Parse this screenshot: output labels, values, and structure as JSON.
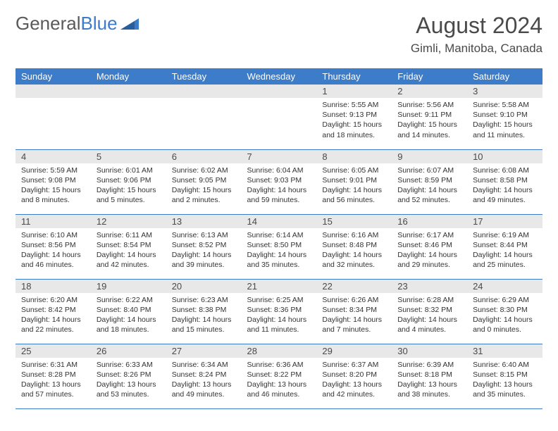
{
  "logo": {
    "text1": "General",
    "text2": "Blue"
  },
  "title": "August 2024",
  "location": "Gimli, Manitoba, Canada",
  "colors": {
    "header_bg": "#3d7cc9",
    "daynum_bg": "#e8e8e8",
    "text": "#333333",
    "rule": "#3d7cc9"
  },
  "weekdays": [
    "Sunday",
    "Monday",
    "Tuesday",
    "Wednesday",
    "Thursday",
    "Friday",
    "Saturday"
  ],
  "weeks": [
    [
      {
        "n": "",
        "sunrise": "",
        "sunset": "",
        "daylight": ""
      },
      {
        "n": "",
        "sunrise": "",
        "sunset": "",
        "daylight": ""
      },
      {
        "n": "",
        "sunrise": "",
        "sunset": "",
        "daylight": ""
      },
      {
        "n": "",
        "sunrise": "",
        "sunset": "",
        "daylight": ""
      },
      {
        "n": "1",
        "sunrise": "Sunrise: 5:55 AM",
        "sunset": "Sunset: 9:13 PM",
        "daylight": "Daylight: 15 hours and 18 minutes."
      },
      {
        "n": "2",
        "sunrise": "Sunrise: 5:56 AM",
        "sunset": "Sunset: 9:11 PM",
        "daylight": "Daylight: 15 hours and 14 minutes."
      },
      {
        "n": "3",
        "sunrise": "Sunrise: 5:58 AM",
        "sunset": "Sunset: 9:10 PM",
        "daylight": "Daylight: 15 hours and 11 minutes."
      }
    ],
    [
      {
        "n": "4",
        "sunrise": "Sunrise: 5:59 AM",
        "sunset": "Sunset: 9:08 PM",
        "daylight": "Daylight: 15 hours and 8 minutes."
      },
      {
        "n": "5",
        "sunrise": "Sunrise: 6:01 AM",
        "sunset": "Sunset: 9:06 PM",
        "daylight": "Daylight: 15 hours and 5 minutes."
      },
      {
        "n": "6",
        "sunrise": "Sunrise: 6:02 AM",
        "sunset": "Sunset: 9:05 PM",
        "daylight": "Daylight: 15 hours and 2 minutes."
      },
      {
        "n": "7",
        "sunrise": "Sunrise: 6:04 AM",
        "sunset": "Sunset: 9:03 PM",
        "daylight": "Daylight: 14 hours and 59 minutes."
      },
      {
        "n": "8",
        "sunrise": "Sunrise: 6:05 AM",
        "sunset": "Sunset: 9:01 PM",
        "daylight": "Daylight: 14 hours and 56 minutes."
      },
      {
        "n": "9",
        "sunrise": "Sunrise: 6:07 AM",
        "sunset": "Sunset: 8:59 PM",
        "daylight": "Daylight: 14 hours and 52 minutes."
      },
      {
        "n": "10",
        "sunrise": "Sunrise: 6:08 AM",
        "sunset": "Sunset: 8:58 PM",
        "daylight": "Daylight: 14 hours and 49 minutes."
      }
    ],
    [
      {
        "n": "11",
        "sunrise": "Sunrise: 6:10 AM",
        "sunset": "Sunset: 8:56 PM",
        "daylight": "Daylight: 14 hours and 46 minutes."
      },
      {
        "n": "12",
        "sunrise": "Sunrise: 6:11 AM",
        "sunset": "Sunset: 8:54 PM",
        "daylight": "Daylight: 14 hours and 42 minutes."
      },
      {
        "n": "13",
        "sunrise": "Sunrise: 6:13 AM",
        "sunset": "Sunset: 8:52 PM",
        "daylight": "Daylight: 14 hours and 39 minutes."
      },
      {
        "n": "14",
        "sunrise": "Sunrise: 6:14 AM",
        "sunset": "Sunset: 8:50 PM",
        "daylight": "Daylight: 14 hours and 35 minutes."
      },
      {
        "n": "15",
        "sunrise": "Sunrise: 6:16 AM",
        "sunset": "Sunset: 8:48 PM",
        "daylight": "Daylight: 14 hours and 32 minutes."
      },
      {
        "n": "16",
        "sunrise": "Sunrise: 6:17 AM",
        "sunset": "Sunset: 8:46 PM",
        "daylight": "Daylight: 14 hours and 29 minutes."
      },
      {
        "n": "17",
        "sunrise": "Sunrise: 6:19 AM",
        "sunset": "Sunset: 8:44 PM",
        "daylight": "Daylight: 14 hours and 25 minutes."
      }
    ],
    [
      {
        "n": "18",
        "sunrise": "Sunrise: 6:20 AM",
        "sunset": "Sunset: 8:42 PM",
        "daylight": "Daylight: 14 hours and 22 minutes."
      },
      {
        "n": "19",
        "sunrise": "Sunrise: 6:22 AM",
        "sunset": "Sunset: 8:40 PM",
        "daylight": "Daylight: 14 hours and 18 minutes."
      },
      {
        "n": "20",
        "sunrise": "Sunrise: 6:23 AM",
        "sunset": "Sunset: 8:38 PM",
        "daylight": "Daylight: 14 hours and 15 minutes."
      },
      {
        "n": "21",
        "sunrise": "Sunrise: 6:25 AM",
        "sunset": "Sunset: 8:36 PM",
        "daylight": "Daylight: 14 hours and 11 minutes."
      },
      {
        "n": "22",
        "sunrise": "Sunrise: 6:26 AM",
        "sunset": "Sunset: 8:34 PM",
        "daylight": "Daylight: 14 hours and 7 minutes."
      },
      {
        "n": "23",
        "sunrise": "Sunrise: 6:28 AM",
        "sunset": "Sunset: 8:32 PM",
        "daylight": "Daylight: 14 hours and 4 minutes."
      },
      {
        "n": "24",
        "sunrise": "Sunrise: 6:29 AM",
        "sunset": "Sunset: 8:30 PM",
        "daylight": "Daylight: 14 hours and 0 minutes."
      }
    ],
    [
      {
        "n": "25",
        "sunrise": "Sunrise: 6:31 AM",
        "sunset": "Sunset: 8:28 PM",
        "daylight": "Daylight: 13 hours and 57 minutes."
      },
      {
        "n": "26",
        "sunrise": "Sunrise: 6:33 AM",
        "sunset": "Sunset: 8:26 PM",
        "daylight": "Daylight: 13 hours and 53 minutes."
      },
      {
        "n": "27",
        "sunrise": "Sunrise: 6:34 AM",
        "sunset": "Sunset: 8:24 PM",
        "daylight": "Daylight: 13 hours and 49 minutes."
      },
      {
        "n": "28",
        "sunrise": "Sunrise: 6:36 AM",
        "sunset": "Sunset: 8:22 PM",
        "daylight": "Daylight: 13 hours and 46 minutes."
      },
      {
        "n": "29",
        "sunrise": "Sunrise: 6:37 AM",
        "sunset": "Sunset: 8:20 PM",
        "daylight": "Daylight: 13 hours and 42 minutes."
      },
      {
        "n": "30",
        "sunrise": "Sunrise: 6:39 AM",
        "sunset": "Sunset: 8:18 PM",
        "daylight": "Daylight: 13 hours and 38 minutes."
      },
      {
        "n": "31",
        "sunrise": "Sunrise: 6:40 AM",
        "sunset": "Sunset: 8:15 PM",
        "daylight": "Daylight: 13 hours and 35 minutes."
      }
    ]
  ]
}
